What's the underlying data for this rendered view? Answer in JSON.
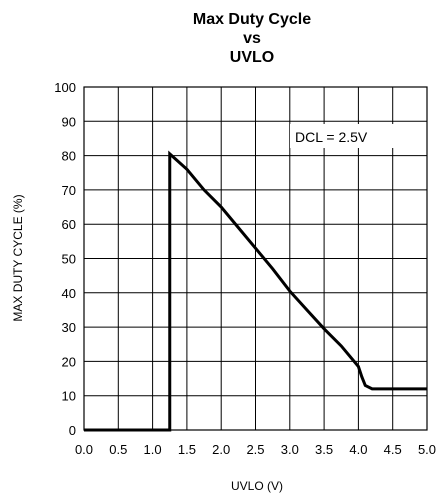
{
  "chart_data": {
    "type": "line",
    "title_lines": [
      "Max Duty Cycle",
      "vs",
      "UVLO"
    ],
    "xlabel": "UVLO (V)",
    "ylabel": "MAX DUTY CYCLE (%)",
    "xlim": [
      0,
      5
    ],
    "ylim": [
      0,
      100
    ],
    "xticks": [
      0.0,
      0.5,
      1.0,
      1.5,
      2.0,
      2.5,
      3.0,
      3.5,
      4.0,
      4.5,
      5.0
    ],
    "xtick_labels": [
      "0.0",
      "0.5",
      "1.0",
      "1.5",
      "2.0",
      "2.5",
      "3.0",
      "3.5",
      "4.0",
      "4.5",
      "5.0"
    ],
    "yticks": [
      0,
      10,
      20,
      30,
      40,
      50,
      60,
      70,
      80,
      90,
      100
    ],
    "ytick_labels": [
      "0",
      "10",
      "20",
      "30",
      "40",
      "50",
      "60",
      "70",
      "80",
      "90",
      "100"
    ],
    "grid": true,
    "annotation": "DCL = 2.5V",
    "series": [
      {
        "color": "#000000",
        "x": [
          0.0,
          1.25,
          1.25,
          1.5,
          1.75,
          2.0,
          2.25,
          2.5,
          2.75,
          3.0,
          3.25,
          3.5,
          3.75,
          4.0,
          4.05,
          4.1,
          4.2,
          5.0
        ],
        "y": [
          0,
          0,
          80.5,
          76,
          70,
          65,
          59,
          53,
          47,
          40.5,
          35,
          29.5,
          24.5,
          18.5,
          15.5,
          13,
          12,
          12
        ]
      }
    ]
  }
}
